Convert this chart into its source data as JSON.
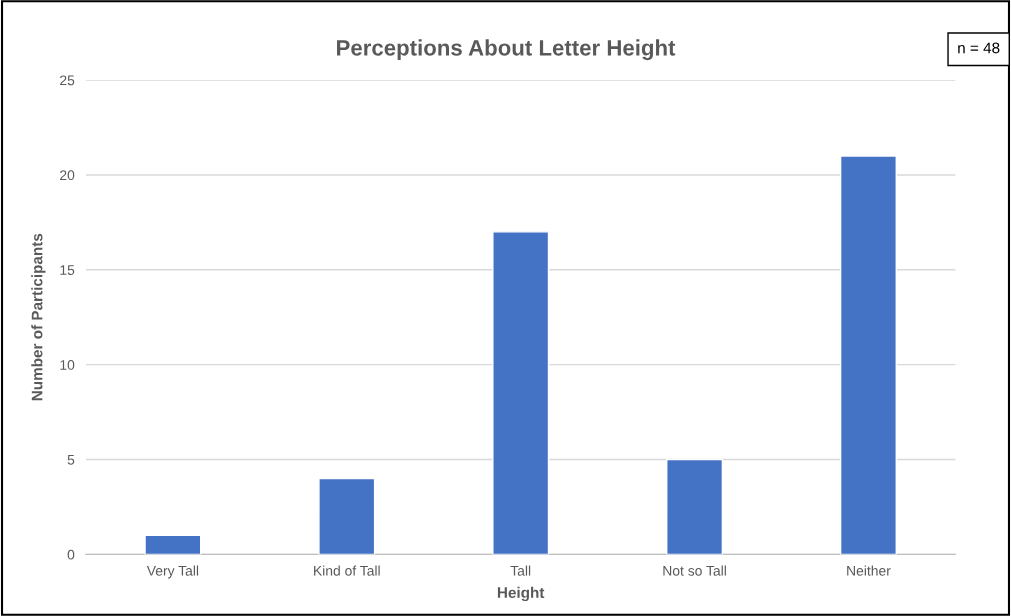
{
  "chart_data": {
    "type": "bar",
    "title": "Perceptions About Letter Height",
    "xlabel": "Height",
    "ylabel": "Number of Participants",
    "categories": [
      "Very Tall",
      "Kind of Tall",
      "Tall",
      "Not so Tall",
      "Neither"
    ],
    "values": [
      1,
      4,
      17,
      5,
      21
    ],
    "color": "#4472c4",
    "ylim": [
      0,
      25
    ],
    "yticks": [
      0,
      5,
      10,
      15,
      20,
      25
    ],
    "grid": "y",
    "legend": false,
    "annotations": [
      "n = 48"
    ]
  }
}
